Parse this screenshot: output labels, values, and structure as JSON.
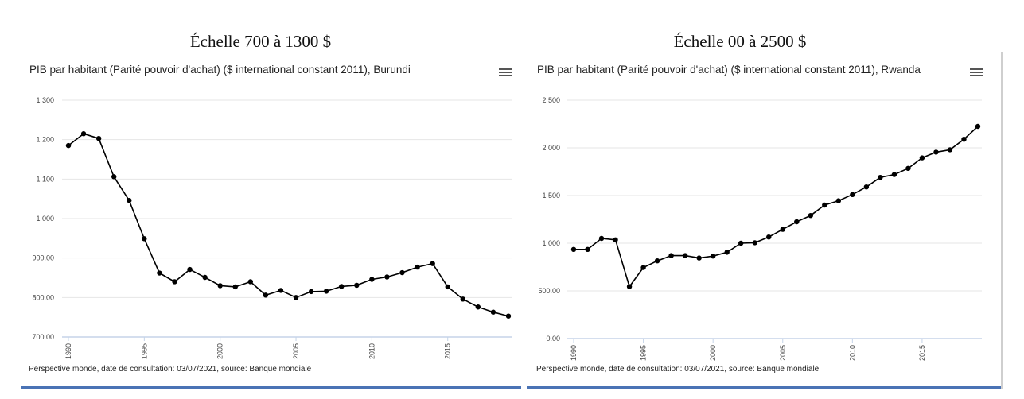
{
  "chart_data": [
    {
      "type": "line",
      "heading": "Échelle 700 à 1300 $",
      "title": "PIB par habitant (Parité pouvoir d'achat) ($ international constant 2011), Burundi",
      "footer": "Perspective monde, date de consultation: 03/07/2021, source: Banque mondiale",
      "x": [
        1990,
        1991,
        1992,
        1993,
        1994,
        1995,
        1996,
        1997,
        1998,
        1999,
        2000,
        2001,
        2002,
        2003,
        2004,
        2005,
        2006,
        2007,
        2008,
        2009,
        2010,
        2011,
        2012,
        2013,
        2014,
        2015,
        2016,
        2017,
        2018,
        2019
      ],
      "values": [
        1185,
        1215,
        1203,
        1106,
        1046,
        949,
        862,
        840,
        871,
        851,
        830,
        827,
        840,
        806,
        818,
        800,
        815,
        816,
        828,
        831,
        846,
        852,
        863,
        877,
        886,
        827,
        796,
        776,
        763,
        753
      ],
      "xlim": [
        1990,
        2019
      ],
      "ylim": [
        700,
        1300
      ],
      "yticks": [
        700,
        800,
        900,
        1000,
        1100,
        1200,
        1300
      ],
      "ytick_labels": [
        "700.00",
        "800.00",
        "900.00",
        "1 000",
        "1 100",
        "1 200",
        "1 300"
      ],
      "xticks": [
        1990,
        1995,
        2000,
        2005,
        2010,
        2015
      ],
      "xtick_labels": [
        "1990",
        "1995",
        "2000",
        "2005",
        "2010",
        "2015"
      ],
      "grid": true,
      "line_color": "#000000"
    },
    {
      "type": "line",
      "heading": "Échelle 00 à 2500 $",
      "title": "PIB par habitant (Parité pouvoir d'achat) ($ international constant 2011), Rwanda",
      "footer": "Perspective monde, date de consultation: 03/07/2021, source: Banque mondiale",
      "x": [
        1990,
        1991,
        1992,
        1993,
        1994,
        1995,
        1996,
        1997,
        1998,
        1999,
        2000,
        2001,
        2002,
        2003,
        2004,
        2005,
        2006,
        2007,
        2008,
        2009,
        2010,
        2011,
        2012,
        2013,
        2014,
        2015,
        2016,
        2017,
        2018,
        2019
      ],
      "values": [
        935,
        935,
        1050,
        1035,
        545,
        745,
        815,
        870,
        870,
        845,
        865,
        905,
        1000,
        1005,
        1065,
        1145,
        1225,
        1290,
        1400,
        1445,
        1510,
        1590,
        1690,
        1720,
        1785,
        1895,
        1955,
        1980,
        2090,
        2225
      ],
      "xlim": [
        1990,
        2019
      ],
      "ylim": [
        0,
        2500
      ],
      "yticks": [
        0,
        500,
        1000,
        1500,
        2000,
        2500
      ],
      "ytick_labels": [
        "0.00",
        "500.00",
        "1 000",
        "1 500",
        "2 000",
        "2 500"
      ],
      "xticks": [
        1990,
        1995,
        2000,
        2005,
        2010,
        2015
      ],
      "xtick_labels": [
        "1990",
        "1995",
        "2000",
        "2005",
        "2010",
        "2015"
      ],
      "grid": true,
      "line_color": "#000000"
    }
  ]
}
